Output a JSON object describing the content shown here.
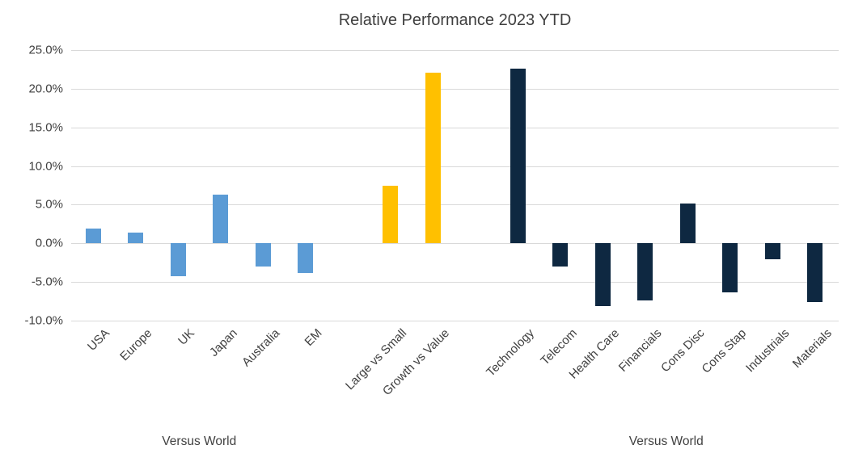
{
  "chart_data": {
    "type": "bar",
    "title": "Relative Performance 2023 YTD",
    "xlabel": "",
    "ylabel": "",
    "ylim": [
      -10,
      25
    ],
    "grid": true,
    "legend": "none",
    "yticks": [
      {
        "value": 25,
        "label": "25.0%"
      },
      {
        "value": 20,
        "label": "20.0%"
      },
      {
        "value": 15,
        "label": "15.0%"
      },
      {
        "value": 10,
        "label": "10.0%"
      },
      {
        "value": 5,
        "label": "5.0%"
      },
      {
        "value": 0,
        "label": "0.0%"
      },
      {
        "value": -5,
        "label": "-5.0%"
      },
      {
        "value": -10,
        "label": "-10.0%"
      }
    ],
    "groups": [
      {
        "id": "regions",
        "axis_label": "Versus World",
        "color": "#5B9BD5",
        "bars": [
          {
            "label": "USA",
            "value": 1.9
          },
          {
            "label": "Europe",
            "value": 1.4
          },
          {
            "label": "UK",
            "value": -4.3
          },
          {
            "label": "Japan",
            "value": 6.3
          },
          {
            "label": "Australia",
            "value": -3.0
          },
          {
            "label": "EM",
            "value": -3.8
          }
        ]
      },
      {
        "id": "styles",
        "axis_label": "",
        "color": "#FFC000",
        "bars": [
          {
            "label": "Large vs Small",
            "value": 7.5
          },
          {
            "label": "Growth vs Value",
            "value": 22.1
          }
        ]
      },
      {
        "id": "sectors",
        "axis_label": "Versus World",
        "color": "#0E2841",
        "bars": [
          {
            "label": "Technology",
            "value": 22.6
          },
          {
            "label": "Telecom",
            "value": -3.0
          },
          {
            "label": "Health Care",
            "value": -8.1
          },
          {
            "label": "Financials",
            "value": -7.4
          },
          {
            "label": "Cons Disc",
            "value": 5.1
          },
          {
            "label": "Cons Stap",
            "value": -6.3
          },
          {
            "label": "Industrials",
            "value": -2.1
          },
          {
            "label": "Materials",
            "value": -7.6
          }
        ]
      }
    ]
  }
}
